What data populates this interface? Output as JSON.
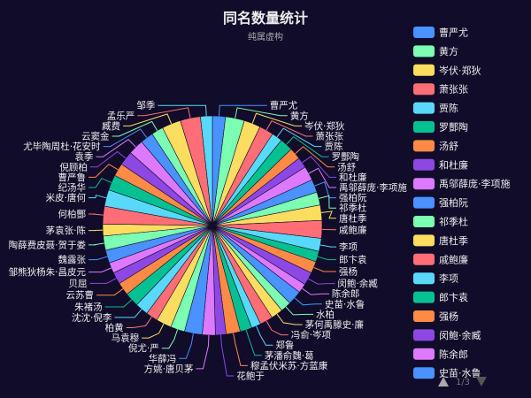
{
  "chart_data": {
    "type": "pie",
    "title": "同名数量统计",
    "subtitle": "纯属虚构",
    "categories": [
      "曹严尤",
      "黄方",
      "岑伏·郑狄",
      "萧张张",
      "贾陈",
      "罗酆陶",
      "汤舒",
      "和杜廉",
      "禹邬薛庞·李项施",
      "强柏阮",
      "祁季杜",
      "唐杜季",
      "戚鲍廉",
      "李项",
      "郎卞袁",
      "强杨",
      "闵鲍·余臧",
      "陈余郎",
      "史苗·水鲁",
      "水柏",
      "茅何禹滕史·廉",
      "冯俞·岑项",
      "郑鲁",
      "茅潘俞魏·葛",
      "穆孟伏米苏·方蓝康",
      "花鲍于",
      "方姚·唐贝茅",
      "华薛冯",
      "倪尤·严",
      "马袁穆",
      "柏黄",
      "沈沈·倪李",
      "朱褚汤",
      "云苏曹",
      "贝屈",
      "邹熊狄杨朱·昌皮元",
      "魏露张",
      "陶薛费皮聂·贺于娄",
      "茅袁张·陈",
      "何柏酆",
      "米皮·唐何",
      "纪汤华",
      "曹严鲁",
      "倪顾柏",
      "袁季",
      "尤毕陶周杜·花安时",
      "云窦金",
      "臧费",
      "孟乐严",
      "邹季"
    ],
    "values": [
      11,
      16,
      14,
      12,
      9,
      11,
      10,
      9,
      12,
      11,
      11,
      13,
      15,
      11,
      9,
      10,
      11,
      8,
      12,
      9,
      10,
      11,
      8,
      10,
      12,
      9,
      11,
      15,
      12,
      13,
      10,
      11,
      12,
      11,
      10,
      9,
      11,
      12,
      10,
      15,
      14,
      13,
      11,
      12,
      13,
      11,
      10,
      16,
      17,
      10
    ],
    "colors": [
      "#4992ff",
      "#7cffb2",
      "#fddd60",
      "#ff6e76",
      "#58d9f9",
      "#05c091",
      "#ff8a45",
      "#8d48e3",
      "#dd79ff",
      "#4992ff",
      "#7cffb2",
      "#fddd60",
      "#ff6e76",
      "#58d9f9",
      "#05c091",
      "#ff8a45",
      "#8d48e3",
      "#dd79ff",
      "#4992ff",
      "#7cffb2",
      "#fddd60",
      "#ff6e76",
      "#58d9f9",
      "#05c091",
      "#ff8a45",
      "#8d48e3",
      "#dd79ff",
      "#4992ff",
      "#7cffb2",
      "#fddd60",
      "#ff6e76",
      "#58d9f9",
      "#05c091",
      "#ff8a45",
      "#8d48e3",
      "#dd79ff",
      "#4992ff",
      "#7cffb2",
      "#fddd60",
      "#ff6e76",
      "#58d9f9",
      "#05c091",
      "#ff8a45",
      "#8d48e3",
      "#dd79ff",
      "#4992ff",
      "#7cffb2",
      "#fddd60",
      "#ff6e76",
      "#58d9f9"
    ],
    "legend": {
      "placement": "right",
      "visible_items": [
        "曹严尤",
        "黄方",
        "岑伏·郑狄",
        "萧张张",
        "贾陈",
        "罗酆陶",
        "汤舒",
        "和杜廉",
        "禹邬薛庞·李项施",
        "强柏阮",
        "祁季杜",
        "唐杜季",
        "戚鲍廉",
        "李项",
        "郎卞袁",
        "强杨",
        "闵鲍·余臧",
        "陈余郎",
        "史苗·水鲁"
      ],
      "page_text": "1/3"
    }
  },
  "colors": {
    "background": "#100c2a",
    "text": "#eeeeee",
    "subtext": "#aaaaaa",
    "pager_active": "#aaaaaa",
    "pager_inactive": "#555555"
  }
}
